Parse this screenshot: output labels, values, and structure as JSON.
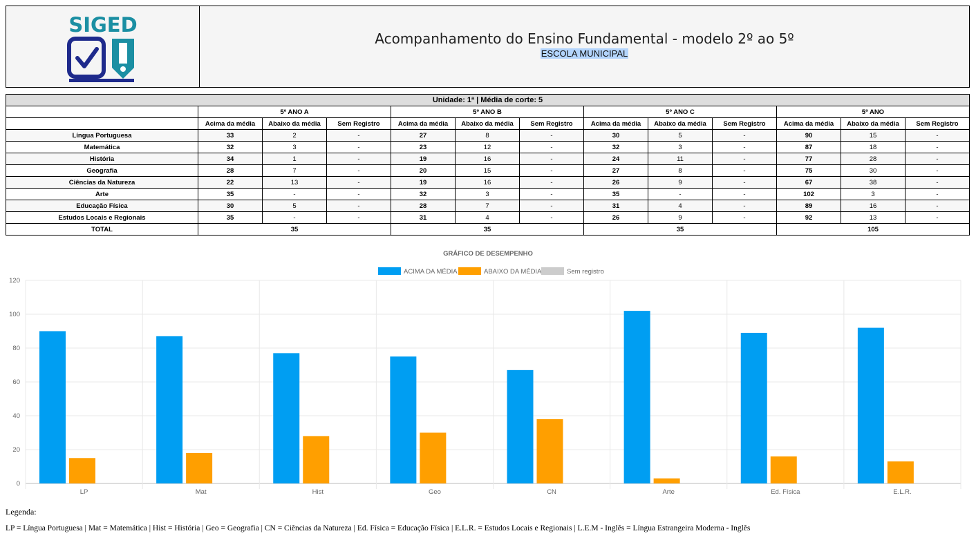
{
  "header": {
    "logo_text": "SIGED",
    "title": "Acompanhamento do Ensino Fundamental - modelo 2º ao 5º",
    "school": "ESCOLA MUNICIPAL"
  },
  "table": {
    "unit_title": "Unidade: 1ª | Média de corte: 5",
    "groups": [
      "5º ANO A",
      "5º ANO B",
      "5º ANO C",
      "5º ANO"
    ],
    "sub_headers": [
      "Acima da média",
      "Abaixo da média",
      "Sem Registro"
    ],
    "rows": [
      {
        "subject": "Língua Portuguesa",
        "values": [
          "33",
          "2",
          "-",
          "27",
          "8",
          "-",
          "30",
          "5",
          "-",
          "90",
          "15",
          "-"
        ]
      },
      {
        "subject": "Matemática",
        "values": [
          "32",
          "3",
          "-",
          "23",
          "12",
          "-",
          "32",
          "3",
          "-",
          "87",
          "18",
          "-"
        ]
      },
      {
        "subject": "História",
        "values": [
          "34",
          "1",
          "-",
          "19",
          "16",
          "-",
          "24",
          "11",
          "-",
          "77",
          "28",
          "-"
        ]
      },
      {
        "subject": "Geografia",
        "values": [
          "28",
          "7",
          "-",
          "20",
          "15",
          "-",
          "27",
          "8",
          "-",
          "75",
          "30",
          "-"
        ]
      },
      {
        "subject": "Ciências da Natureza",
        "values": [
          "22",
          "13",
          "-",
          "19",
          "16",
          "-",
          "26",
          "9",
          "-",
          "67",
          "38",
          "-"
        ]
      },
      {
        "subject": "Arte",
        "values": [
          "35",
          "-",
          "-",
          "32",
          "3",
          "-",
          "35",
          "-",
          "-",
          "102",
          "3",
          "-"
        ]
      },
      {
        "subject": "Educação Física",
        "values": [
          "30",
          "5",
          "-",
          "28",
          "7",
          "-",
          "31",
          "4",
          "-",
          "89",
          "16",
          "-"
        ]
      },
      {
        "subject": "Estudos Locais e Regionais",
        "values": [
          "35",
          "-",
          "-",
          "31",
          "4",
          "-",
          "26",
          "9",
          "-",
          "92",
          "13",
          "-"
        ]
      }
    ],
    "total_label": "TOTAL",
    "totals": [
      "35",
      "35",
      "35",
      "105"
    ]
  },
  "chart_data": {
    "type": "bar",
    "title": "GRÁFICO DE DESEMPENHO",
    "categories": [
      "LP",
      "Mat",
      "Hist",
      "Geo",
      "CN",
      "Arte",
      "Ed. Física",
      "E.L.R."
    ],
    "series": [
      {
        "name": "ACIMA DA MÉDIA",
        "color": "#009ef2",
        "values": [
          90,
          87,
          77,
          75,
          67,
          102,
          89,
          92
        ]
      },
      {
        "name": "ABAIXO DA MÉDIA",
        "color": "#ff9f00",
        "values": [
          15,
          18,
          28,
          30,
          38,
          3,
          16,
          13
        ]
      },
      {
        "name": "Sem registro",
        "color": "#cccccc",
        "values": [
          0,
          0,
          0,
          0,
          0,
          0,
          0,
          0
        ]
      }
    ],
    "ylim": [
      0,
      120
    ],
    "yticks": [
      "0",
      "20",
      "40",
      "60",
      "80",
      "100",
      "120"
    ],
    "legend_position": "top",
    "grid": true
  },
  "legend_section": {
    "label": "Legenda:",
    "text": "LP = Língua Portuguesa | Mat = Matemática | Hist = História | Geo = Geografia | CN = Ciências da Natureza | Ed. Física = Educação Física | E.L.R. = Estudos Locais e Regionais | L.E.M - Inglês = Língua Estrangeira Moderna - Inglês"
  },
  "colors": {
    "logo_blue": "#1e2a8c",
    "logo_teal": "#1b8fa3"
  }
}
